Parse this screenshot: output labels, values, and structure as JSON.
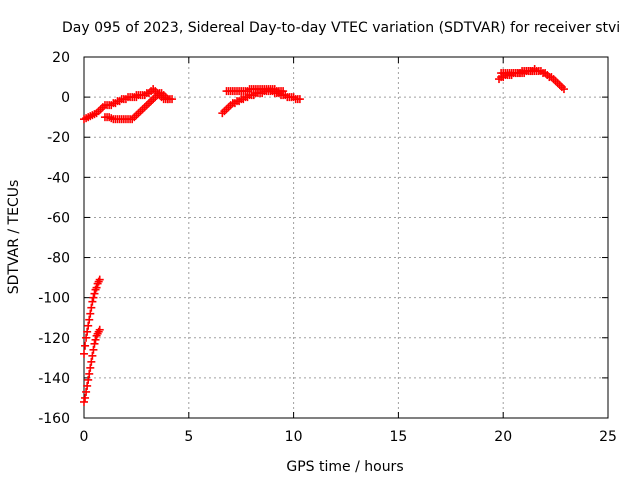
{
  "chart_data": {
    "type": "scatter",
    "title": "Day 095 of 2023, Sidereal Day-to-day VTEC variation (SDTVAR) for receiver stvi",
    "xlabel": "GPS time / hours",
    "ylabel": "SDTVAR / TECUs",
    "xlim": [
      0,
      25
    ],
    "ylim": [
      -160,
      20
    ],
    "x_ticks": [
      "0",
      "5",
      "10",
      "15",
      "20",
      "25"
    ],
    "y_ticks": [
      "20",
      "0",
      "-20",
      "-40",
      "-60",
      "-80",
      "-100",
      "-120",
      "-140",
      "-160"
    ],
    "grid": true,
    "series_color": "#ff0000",
    "marker": "plus",
    "series": [
      {
        "x": [
          0.0,
          0.1,
          0.2,
          0.3,
          0.4,
          0.5,
          0.6,
          0.7,
          0.8,
          0.9,
          1.0,
          1.1,
          1.2,
          1.3,
          1.4,
          1.5,
          1.6,
          1.7,
          1.8,
          1.9,
          2.0,
          2.1,
          2.2,
          2.3,
          2.4,
          2.5,
          1.0,
          1.1,
          1.2,
          1.3,
          1.4,
          1.5,
          1.6,
          1.7,
          1.8,
          1.9,
          2.0,
          2.1,
          2.2,
          2.3,
          2.4,
          2.5,
          2.6,
          2.7,
          2.8,
          2.9,
          3.0,
          3.1,
          3.2,
          3.3,
          3.4,
          3.5,
          3.6,
          3.7,
          3.8,
          3.9,
          4.0,
          4.1,
          4.2,
          2.5,
          2.6,
          2.7,
          2.8,
          2.9,
          3.0,
          3.1,
          3.2,
          3.3,
          3.4,
          3.5,
          3.6,
          3.7,
          3.8,
          3.9,
          4.0
        ],
        "y": [
          -11,
          -10.5,
          -10,
          -9.5,
          -9,
          -8.5,
          -8,
          -7,
          -6,
          -5,
          -4,
          -4,
          -4,
          -4,
          -3,
          -3,
          -2,
          -2,
          -1,
          -1,
          -1,
          0,
          0,
          0,
          0,
          0,
          -10,
          -10,
          -10,
          -10.5,
          -11,
          -11,
          -11,
          -11,
          -11,
          -11,
          -11,
          -11,
          -11,
          -11,
          -10,
          -9,
          -8,
          -7,
          -6,
          -5,
          -4,
          -3,
          -2,
          -1,
          0,
          1,
          2,
          2,
          1,
          0,
          -1,
          -1,
          -1,
          1,
          1,
          1,
          1,
          1,
          2,
          2,
          3,
          4,
          3,
          2,
          1,
          0,
          -1,
          -1,
          -1
        ]
      },
      {
        "x": [
          6.6,
          6.7,
          6.8,
          6.9,
          7.0,
          7.1,
          7.2,
          7.3,
          7.4,
          7.5,
          7.6,
          7.7,
          7.8,
          7.9,
          8.0,
          8.1,
          8.2,
          8.3,
          8.4,
          8.5,
          8.6,
          8.7,
          8.8,
          8.9,
          9.0,
          9.1,
          9.2,
          9.3,
          9.4,
          9.5,
          9.6,
          9.7,
          9.8,
          9.9,
          10.0,
          10.1,
          10.2,
          10.3,
          6.8,
          6.9,
          7.0,
          7.1,
          7.2,
          7.3,
          7.4,
          7.5,
          7.6,
          7.7,
          7.8,
          7.9,
          8.0,
          8.1,
          8.2,
          8.3,
          8.4,
          8.5,
          8.6,
          8.7,
          8.8,
          8.9,
          9.0,
          9.1,
          9.2,
          9.3,
          9.4,
          9.5
        ],
        "y": [
          -8,
          -7,
          -6,
          -5,
          -4,
          -3,
          -3,
          -2,
          -2,
          -1,
          -1,
          0,
          0,
          1,
          1,
          1,
          2,
          2,
          2,
          2,
          3,
          3,
          3,
          3,
          3,
          2,
          2,
          2,
          1,
          1,
          1,
          0,
          0,
          0,
          0,
          -1,
          -1,
          -1,
          3,
          3,
          3,
          3,
          3,
          3,
          3,
          3,
          3,
          3,
          3,
          4,
          4,
          4,
          4,
          4,
          4,
          4,
          4,
          4,
          4,
          4,
          4,
          4,
          3,
          3,
          3,
          3
        ]
      },
      {
        "x": [
          19.8,
          19.9,
          20.0,
          20.1,
          20.2,
          20.3,
          20.4,
          20.5,
          20.6,
          20.7,
          20.8,
          20.9,
          21.0,
          21.1,
          21.2,
          21.3,
          21.4,
          21.5,
          21.6,
          21.7,
          21.8,
          21.9,
          22.0,
          22.1,
          22.2,
          22.3,
          22.4,
          22.5,
          22.6,
          22.7,
          22.8,
          22.9,
          19.9,
          20.0,
          20.1,
          20.2,
          20.3,
          20.4,
          20.5,
          20.6,
          20.7,
          20.8,
          20.9,
          21.0,
          21.1,
          21.2,
          21.3,
          21.4,
          21.5
        ],
        "y": [
          9,
          10,
          10,
          11,
          11,
          11,
          11,
          12,
          12,
          12,
          12,
          12,
          12,
          13,
          13,
          13,
          13,
          13,
          13,
          13,
          13,
          12,
          12,
          11,
          10,
          10,
          9,
          8,
          7,
          6,
          5,
          4,
          12,
          12,
          12,
          12,
          12,
          12,
          12,
          12,
          12,
          12,
          13,
          13,
          13,
          13,
          13,
          13,
          14
        ]
      },
      {
        "x": [
          0.0,
          0.05,
          0.1,
          0.15,
          0.2,
          0.25,
          0.3,
          0.35,
          0.4,
          0.45,
          0.5,
          0.55,
          0.6,
          0.65,
          0.7,
          0.75,
          0.0,
          0.05,
          0.1,
          0.15,
          0.2,
          0.25,
          0.3,
          0.35,
          0.4,
          0.45,
          0.5,
          0.55,
          0.6,
          0.65,
          0.7,
          0.75
        ],
        "y": [
          -128,
          -124,
          -120,
          -117,
          -114,
          -111,
          -108,
          -105,
          -102,
          -100,
          -98,
          -96,
          -95,
          -93,
          -92,
          -91,
          -152,
          -150,
          -147,
          -144,
          -141,
          -138,
          -135,
          -132,
          -129,
          -126,
          -123,
          -121,
          -119,
          -118,
          -117,
          -116
        ]
      }
    ]
  }
}
